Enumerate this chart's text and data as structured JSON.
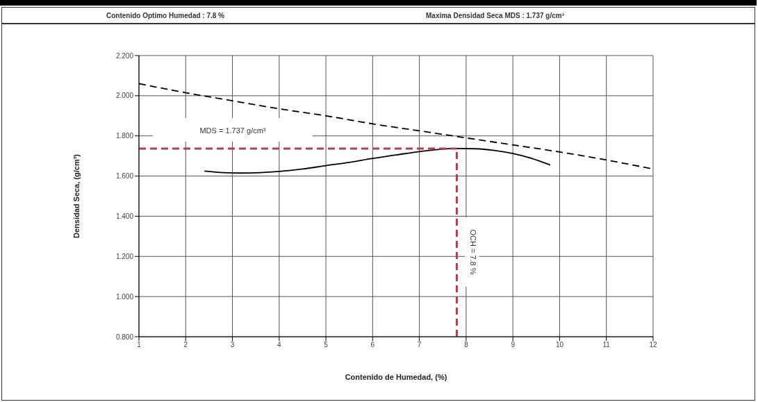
{
  "chart_data": {
    "type": "line",
    "annotations": [
      "Contenido Optimo Humedad :  7.8 %",
      "Maxima Densidad Seca  MDS :  1.737 g/cm³"
    ],
    "xlabel": "Contenido de Humedad, (%)",
    "ylabel": "Densidad Seca, (g/cm³)",
    "xlim": [
      1,
      12
    ],
    "xticks": [
      1,
      2,
      3,
      4,
      5,
      6,
      7,
      8,
      9,
      10,
      11,
      12
    ],
    "ylim": [
      0.8,
      2.2
    ],
    "yticks": [
      {
        "value": 0.8,
        "label": "0.800"
      },
      {
        "value": 1.0,
        "label": "1.000"
      },
      {
        "value": 1.2,
        "label": "1.200"
      },
      {
        "value": 1.4,
        "label": "1.400"
      },
      {
        "value": 1.6,
        "label": "1.600"
      },
      {
        "value": 1.8,
        "label": "1.800"
      },
      {
        "value": 2.0,
        "label": "2.000"
      },
      {
        "value": 2.2,
        "label": "2.200"
      }
    ],
    "grid": true,
    "series": [
      {
        "color": "#000000",
        "line_style": "solid",
        "x": [
          2.4,
          2.8,
          3.2,
          3.6,
          4,
          4.5,
          5,
          5.5,
          6,
          6.5,
          7,
          7.4,
          7.8,
          8.2,
          8.6,
          9,
          9.4,
          9.8
        ],
        "values": [
          1.625,
          1.617,
          1.615,
          1.617,
          1.623,
          1.635,
          1.652,
          1.668,
          1.688,
          1.705,
          1.722,
          1.732,
          1.737,
          1.736,
          1.728,
          1.712,
          1.688,
          1.655
        ]
      },
      {
        "color": "#000000",
        "line_style": "dashed",
        "x": [
          1,
          2,
          3,
          4,
          5,
          6,
          7,
          8,
          9,
          10,
          11,
          12
        ],
        "values": [
          2.06,
          2.015,
          1.975,
          1.935,
          1.9,
          1.86,
          1.825,
          1.79,
          1.755,
          1.72,
          1.68,
          1.635
        ]
      }
    ],
    "ref_lines": [
      {
        "axis": "y",
        "value": 1.737,
        "label": "MDS = 1.737 g/cm³",
        "color": "#c0394b",
        "line_style": "dashed"
      },
      {
        "axis": "x",
        "value": 7.8,
        "label": "OCH = 7.8 %",
        "color": "#c0394b",
        "line_style": "dashed"
      }
    ]
  }
}
